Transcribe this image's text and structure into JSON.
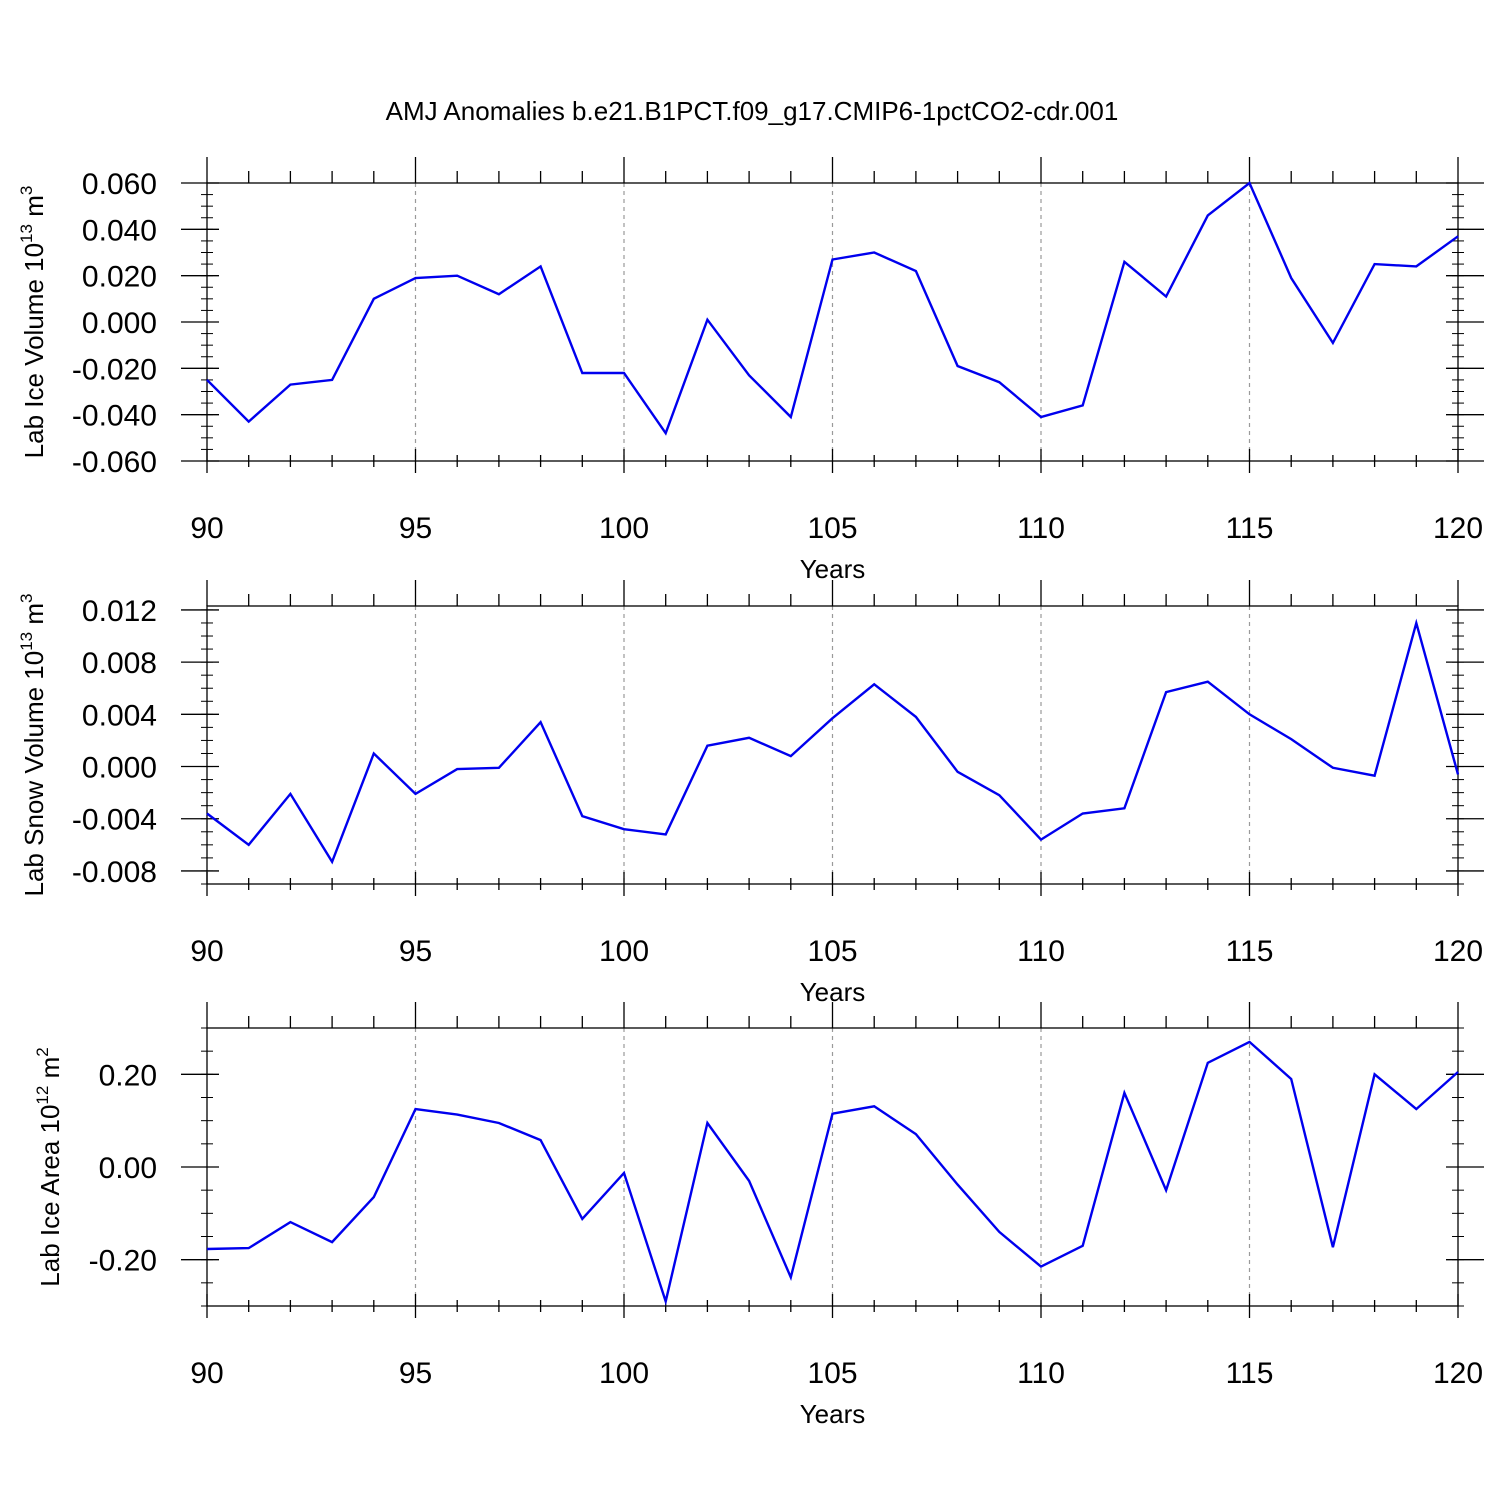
{
  "title": "AMJ Anomalies b.e21.B1PCT.f09_g17.CMIP6-1pctCO2-cdr.001",
  "chart_data": [
    {
      "type": "line",
      "ylabel": "Lab Ice Volume 10",
      "ylabel_exp": "13",
      "ylabel_unit": " m",
      "ylabel_unit_exp": "3",
      "xlabel": "Years",
      "xlim": [
        90,
        120
      ],
      "ylim": [
        -0.06,
        0.06
      ],
      "yticks": [
        -0.06,
        -0.04,
        -0.02,
        0.0,
        0.02,
        0.04,
        0.06
      ],
      "ytick_labels": [
        "-0.060",
        "-0.040",
        "-0.020",
        "0.000",
        "0.020",
        "0.040",
        "0.060"
      ],
      "yminor_step": 0.005,
      "xticks": [
        90,
        95,
        100,
        105,
        110,
        115,
        120
      ],
      "xtick_labels": [
        "90",
        "95",
        "100",
        "105",
        "110",
        "115",
        "120"
      ],
      "grid_x": [
        95,
        100,
        105,
        110,
        115
      ],
      "line_color": "#0000ee",
      "x": [
        90,
        91,
        92,
        93,
        94,
        95,
        96,
        97,
        98,
        99,
        100,
        101,
        102,
        103,
        104,
        105,
        106,
        107,
        108,
        109,
        110,
        111,
        112,
        113,
        114,
        115,
        116,
        117,
        118,
        119,
        120
      ],
      "y": [
        -0.025,
        -0.043,
        -0.027,
        -0.025,
        0.01,
        0.019,
        0.02,
        0.012,
        0.024,
        -0.022,
        -0.022,
        -0.048,
        0.001,
        -0.023,
        -0.041,
        0.027,
        0.03,
        0.022,
        -0.019,
        -0.026,
        -0.041,
        -0.036,
        0.026,
        0.011,
        0.046,
        0.06,
        0.019,
        -0.009,
        0.025,
        0.024,
        0.037
      ]
    },
    {
      "type": "line",
      "ylabel": "Lab Snow Volume 10",
      "ylabel_exp": "13",
      "ylabel_unit": " m",
      "ylabel_unit_exp": "3",
      "xlabel": "Years",
      "xlim": [
        90,
        120
      ],
      "ylim": [
        -0.009,
        0.0123
      ],
      "yticks": [
        -0.008,
        -0.004,
        0.0,
        0.004,
        0.008,
        0.012
      ],
      "ytick_labels": [
        "-0.008",
        "-0.004",
        "0.000",
        "0.004",
        "0.008",
        "0.012"
      ],
      "yminor_step": 0.001,
      "xticks": [
        90,
        95,
        100,
        105,
        110,
        115,
        120
      ],
      "xtick_labels": [
        "90",
        "95",
        "100",
        "105",
        "110",
        "115",
        "120"
      ],
      "grid_x": [
        95,
        100,
        105,
        110,
        115
      ],
      "line_color": "#0000ee",
      "x": [
        90,
        91,
        92,
        93,
        94,
        95,
        96,
        97,
        98,
        99,
        100,
        101,
        102,
        103,
        104,
        105,
        106,
        107,
        108,
        109,
        110,
        111,
        112,
        113,
        114,
        115,
        116,
        117,
        118,
        119,
        120
      ],
      "y": [
        -0.0036,
        -0.006,
        -0.0021,
        -0.0073,
        0.001,
        -0.0021,
        -0.0002,
        -0.0001,
        0.0034,
        -0.0038,
        -0.0048,
        -0.0052,
        0.0016,
        0.0022,
        0.0008,
        0.0037,
        0.0063,
        0.0038,
        -0.0004,
        -0.0022,
        -0.0056,
        -0.0036,
        -0.0032,
        0.0057,
        0.0065,
        0.004,
        0.0021,
        -0.0001,
        -0.0007,
        0.011,
        -0.0006
      ]
    },
    {
      "type": "line",
      "ylabel": "Lab Ice Area 10",
      "ylabel_exp": "12",
      "ylabel_unit": " m",
      "ylabel_unit_exp": "2",
      "xlabel": "Years",
      "xlim": [
        90,
        120
      ],
      "ylim": [
        -0.3,
        0.3
      ],
      "yticks": [
        -0.2,
        0.0,
        0.2
      ],
      "ytick_labels": [
        "-0.20",
        "0.00",
        "0.20"
      ],
      "yminor_step": 0.05,
      "xticks": [
        90,
        95,
        100,
        105,
        110,
        115,
        120
      ],
      "xtick_labels": [
        "90",
        "95",
        "100",
        "105",
        "110",
        "115",
        "120"
      ],
      "grid_x": [
        95,
        100,
        105,
        110,
        115
      ],
      "line_color": "#0000ee",
      "x": [
        90,
        91,
        92,
        93,
        94,
        95,
        96,
        97,
        98,
        99,
        100,
        101,
        102,
        103,
        104,
        105,
        106,
        107,
        108,
        109,
        110,
        111,
        112,
        113,
        114,
        115,
        116,
        117,
        118,
        119,
        120
      ],
      "y": [
        -0.177,
        -0.175,
        -0.119,
        -0.162,
        -0.065,
        0.125,
        0.113,
        0.095,
        0.058,
        -0.112,
        -0.013,
        -0.29,
        0.095,
        -0.03,
        -0.238,
        0.115,
        0.131,
        0.071,
        -0.038,
        -0.14,
        -0.215,
        -0.17,
        0.16,
        -0.05,
        0.225,
        0.27,
        0.19,
        -0.173,
        0.2,
        0.125,
        0.205
      ]
    }
  ]
}
